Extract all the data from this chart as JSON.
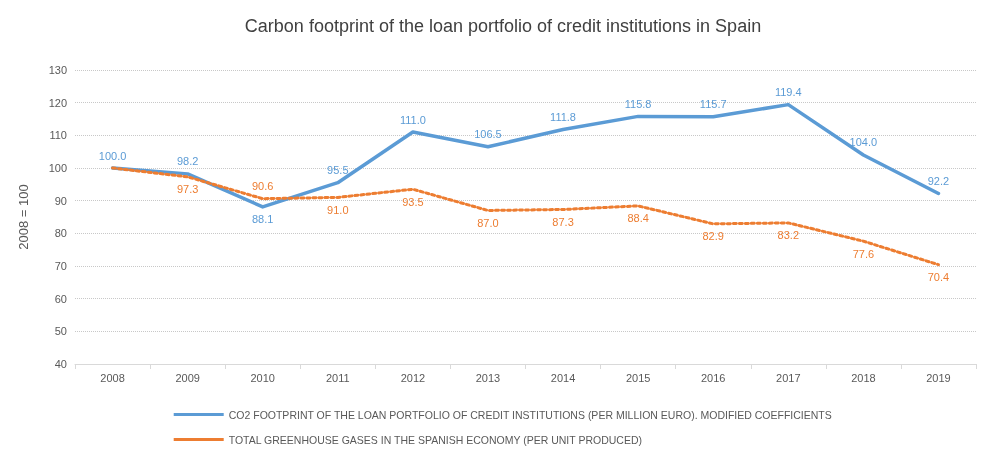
{
  "chart_data": {
    "type": "line",
    "title": "Carbon footprint of the loan portfolio of credit institutions in Spain",
    "ylabel": "2008 = 100",
    "categories": [
      "2008",
      "2009",
      "2010",
      "2011",
      "2012",
      "2013",
      "2014",
      "2015",
      "2016",
      "2017",
      "2018",
      "2019"
    ],
    "series": [
      {
        "name": "CO2 FOOTPRINT OF THE LOAN PORTFOLIO OF CREDIT INSTITUTIONS (PER MILLION EURO). MODIFIED COEFFICIENTS",
        "color": "#5b9bd5",
        "line_style": "solid",
        "values": [
          100.0,
          98.2,
          88.1,
          95.5,
          111.0,
          106.5,
          111.8,
          115.8,
          115.7,
          119.4,
          104.0,
          92.2
        ],
        "value_labels": [
          "100.0",
          "98.2",
          "88.1",
          "95.5",
          "111.0",
          "106.5",
          "111.8",
          "115.8",
          "115.7",
          "119.4",
          "104.0",
          "92.2"
        ]
      },
      {
        "name": "TOTAL GREENHOUSE GASES IN THE SPANISH ECONOMY (PER UNIT PRODUCED)",
        "color": "#ed7d31",
        "line_style": "dotted",
        "values": [
          100.0,
          97.3,
          90.6,
          91.0,
          93.5,
          87.0,
          87.3,
          88.4,
          82.9,
          83.2,
          77.6,
          70.4
        ],
        "value_labels": [
          null,
          "97.3",
          "90.6",
          "91.0",
          "93.5",
          "87.0",
          "87.3",
          "88.4",
          "82.9",
          "83.2",
          "77.6",
          "70.4"
        ]
      }
    ],
    "ylim": [
      40,
      130
    ],
    "yticks": [
      40,
      50,
      60,
      70,
      80,
      90,
      100,
      110,
      120,
      130
    ],
    "grid": "y",
    "legend": "bottom",
    "marker": "none"
  }
}
